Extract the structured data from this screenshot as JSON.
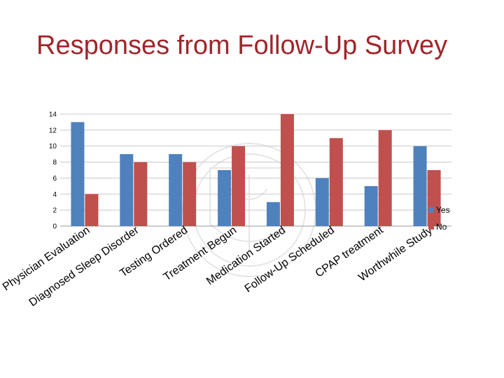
{
  "slide": {
    "title": "Responses from Follow-Up Survey"
  },
  "colors": {
    "title": "#a0262b",
    "yes": "#4f81bd",
    "no": "#c0504d",
    "grid": "#c8c8c8"
  },
  "chart_data": {
    "type": "bar",
    "categories": [
      "Physician Evaluation",
      "Diagnosed Sleep Disorder",
      "Testing Ordered",
      "Treatment Begun",
      "Medication Started",
      "Follow-Up Scheduled",
      "CPAP treatment",
      "Worthwhile Study"
    ],
    "series": [
      {
        "name": "Yes",
        "values": [
          13,
          9,
          9,
          7,
          3,
          6,
          5,
          10
        ]
      },
      {
        "name": "No",
        "values": [
          4,
          8,
          8,
          10,
          14,
          11,
          12,
          7
        ]
      }
    ],
    "yticks": [
      0,
      2,
      4,
      6,
      8,
      10,
      12,
      14
    ],
    "ylim": [
      0,
      14
    ],
    "grid": true,
    "legend": "right"
  }
}
